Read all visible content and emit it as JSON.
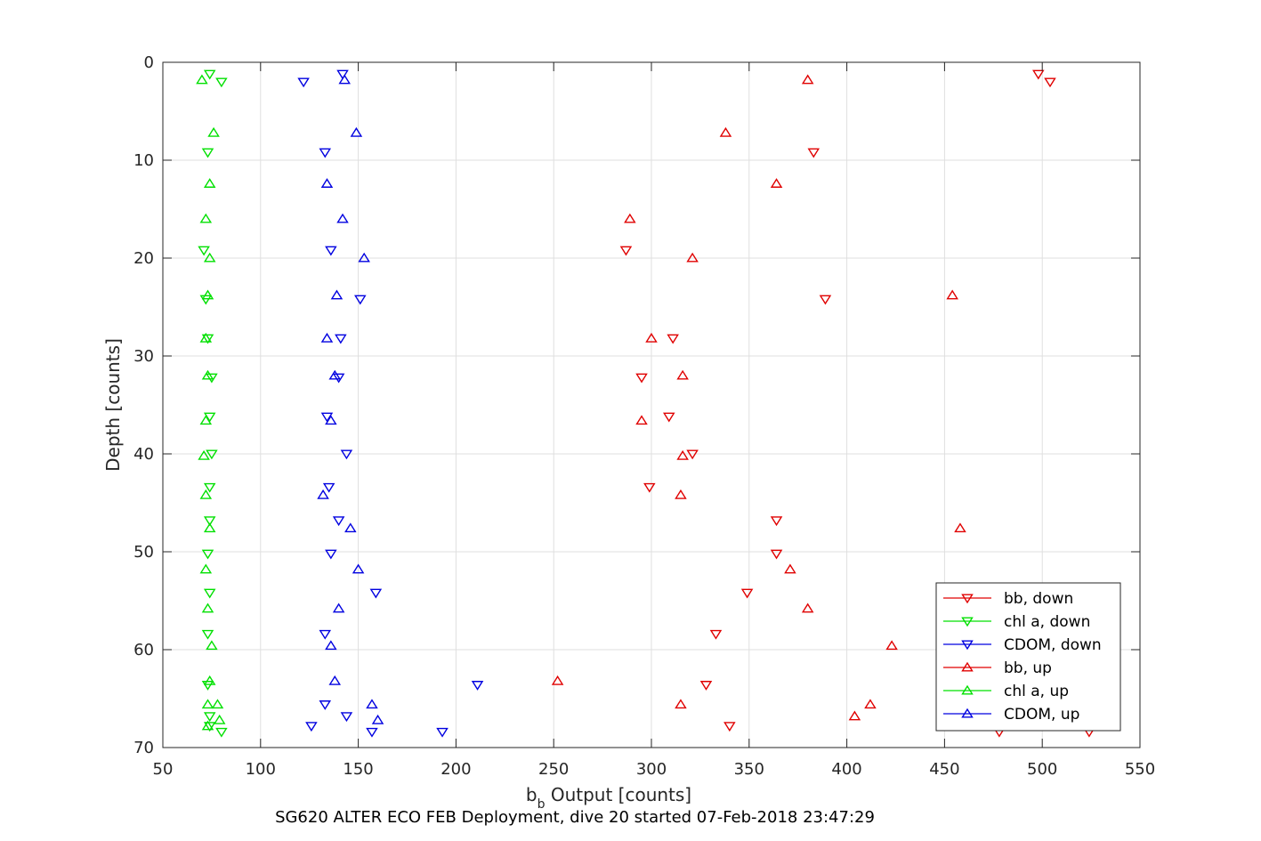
{
  "chart_data": {
    "type": "scatter",
    "xlabel_main": "b",
    "xlabel_sub": "b",
    "xlabel_rest": " Output [counts]",
    "ylabel": "Depth [counts]",
    "caption": "SG620 ALTER ECO FEB Deployment, dive 20 started 07-Feb-2018 23:47:29",
    "xlim": [
      50,
      550
    ],
    "ylim": [
      0,
      70
    ],
    "y_reversed": true,
    "grid": true,
    "legend_position": "bottom-right",
    "x_ticks": [
      "50",
      "100",
      "150",
      "200",
      "250",
      "300",
      "350",
      "400",
      "450",
      "500",
      "550"
    ],
    "y_ticks": [
      "0",
      "10",
      "20",
      "30",
      "40",
      "50",
      "60",
      "70"
    ],
    "series": [
      {
        "name": "bb, down",
        "color": "#e00000",
        "marker": "triangle-down",
        "points": [
          [
            498,
            1.2
          ],
          [
            504,
            2.0
          ],
          [
            383,
            9.2
          ],
          [
            287,
            19.2
          ],
          [
            389,
            24.2
          ],
          [
            311,
            28.2
          ],
          [
            295,
            32.2
          ],
          [
            309,
            36.2
          ],
          [
            321,
            40.0
          ],
          [
            299,
            43.4
          ],
          [
            364,
            46.8
          ],
          [
            364,
            50.2
          ],
          [
            349,
            54.2
          ],
          [
            333,
            58.4
          ],
          [
            328,
            63.6
          ],
          [
            340,
            67.8
          ],
          [
            478,
            68.4
          ],
          [
            524,
            68.4
          ]
        ]
      },
      {
        "name": "chl a, down",
        "color": "#00e000",
        "marker": "triangle-down",
        "points": [
          [
            74,
            1.2
          ],
          [
            80,
            2.0
          ],
          [
            73,
            9.2
          ],
          [
            71,
            19.2
          ],
          [
            72,
            24.2
          ],
          [
            73,
            28.2
          ],
          [
            75,
            32.2
          ],
          [
            74,
            36.2
          ],
          [
            75,
            40.0
          ],
          [
            74,
            43.4
          ],
          [
            74,
            46.8
          ],
          [
            73,
            50.2
          ],
          [
            74,
            54.2
          ],
          [
            73,
            58.4
          ],
          [
            73,
            63.6
          ],
          [
            74,
            66.8
          ],
          [
            74,
            67.8
          ],
          [
            80,
            68.4
          ]
        ]
      },
      {
        "name": "CDOM, down",
        "color": "#0000e0",
        "marker": "triangle-down",
        "points": [
          [
            142,
            1.2
          ],
          [
            122,
            2.0
          ],
          [
            133,
            9.2
          ],
          [
            136,
            19.2
          ],
          [
            151,
            24.2
          ],
          [
            141,
            28.2
          ],
          [
            140,
            32.2
          ],
          [
            134,
            36.2
          ],
          [
            144,
            40.0
          ],
          [
            135,
            43.4
          ],
          [
            140,
            46.8
          ],
          [
            136,
            50.2
          ],
          [
            159,
            54.2
          ],
          [
            133,
            58.4
          ],
          [
            211,
            63.6
          ],
          [
            133,
            65.6
          ],
          [
            144,
            66.8
          ],
          [
            126,
            67.8
          ],
          [
            157,
            68.4
          ],
          [
            193,
            68.4
          ]
        ]
      },
      {
        "name": "bb, up",
        "color": "#e00000",
        "marker": "triangle-up",
        "points": [
          [
            380,
            1.8
          ],
          [
            338,
            7.2
          ],
          [
            364,
            12.4
          ],
          [
            289,
            16.0
          ],
          [
            321,
            20.0
          ],
          [
            454,
            23.8
          ],
          [
            300,
            28.2
          ],
          [
            316,
            32.0
          ],
          [
            295,
            36.6
          ],
          [
            316,
            40.2
          ],
          [
            315,
            44.2
          ],
          [
            458,
            47.6
          ],
          [
            371,
            51.8
          ],
          [
            380,
            55.8
          ],
          [
            423,
            59.6
          ],
          [
            252,
            63.2
          ],
          [
            315,
            65.6
          ],
          [
            412,
            65.6
          ],
          [
            404,
            66.8
          ]
        ]
      },
      {
        "name": "chl a, up",
        "color": "#00e000",
        "marker": "triangle-up",
        "points": [
          [
            70,
            1.8
          ],
          [
            76,
            7.2
          ],
          [
            74,
            12.4
          ],
          [
            72,
            16.0
          ],
          [
            74,
            20.0
          ],
          [
            73,
            23.8
          ],
          [
            72,
            28.2
          ],
          [
            73,
            32.0
          ],
          [
            72,
            36.6
          ],
          [
            71,
            40.2
          ],
          [
            72,
            44.2
          ],
          [
            74,
            47.6
          ],
          [
            72,
            51.8
          ],
          [
            73,
            55.8
          ],
          [
            75,
            59.6
          ],
          [
            74,
            63.2
          ],
          [
            73,
            65.6
          ],
          [
            78,
            65.6
          ],
          [
            79,
            67.2
          ],
          [
            73,
            67.8
          ]
        ]
      },
      {
        "name": "CDOM, up",
        "color": "#0000e0",
        "marker": "triangle-up",
        "points": [
          [
            143,
            1.8
          ],
          [
            149,
            7.2
          ],
          [
            134,
            12.4
          ],
          [
            142,
            16.0
          ],
          [
            153,
            20.0
          ],
          [
            139,
            23.8
          ],
          [
            134,
            28.2
          ],
          [
            138,
            32.0
          ],
          [
            136,
            36.6
          ],
          [
            132,
            44.2
          ],
          [
            146,
            47.6
          ],
          [
            150,
            51.8
          ],
          [
            140,
            55.8
          ],
          [
            136,
            59.6
          ],
          [
            138,
            63.2
          ],
          [
            157,
            65.6
          ],
          [
            160,
            67.2
          ]
        ]
      }
    ]
  }
}
